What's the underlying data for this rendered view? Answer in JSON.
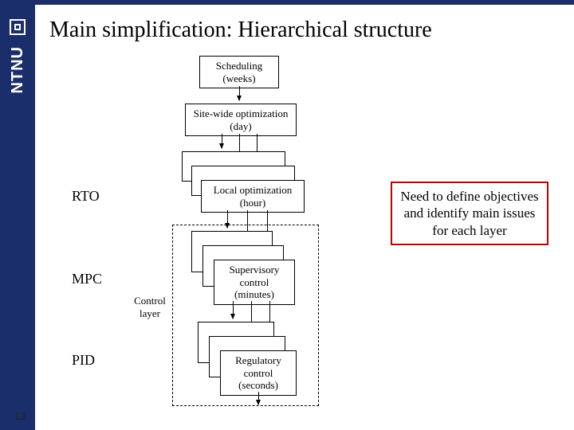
{
  "page": {
    "title": "Main simplification: Hierarchical structure",
    "number": "13"
  },
  "sidebar": {
    "org": "NTNU"
  },
  "labels": {
    "rto": "RTO",
    "mpc": "MPC",
    "pid": "PID",
    "control_layer": "Control\nlayer"
  },
  "boxes": {
    "scheduling": "Scheduling\n(weeks)",
    "sitewide": "Site-wide optimization\n(day)",
    "local": "Local optimization\n(hour)",
    "supervisory": "Supervisory\ncontrol\n(minutes)",
    "regulatory": "Regulatory\ncontrol\n(seconds)"
  },
  "callout": {
    "text": "Need to define objectives and identify main issues for each layer"
  },
  "colors": {
    "brand": "#1a2e6b",
    "callout_border": "#c00000",
    "box_border": "#000000",
    "background": "#ffffff"
  }
}
